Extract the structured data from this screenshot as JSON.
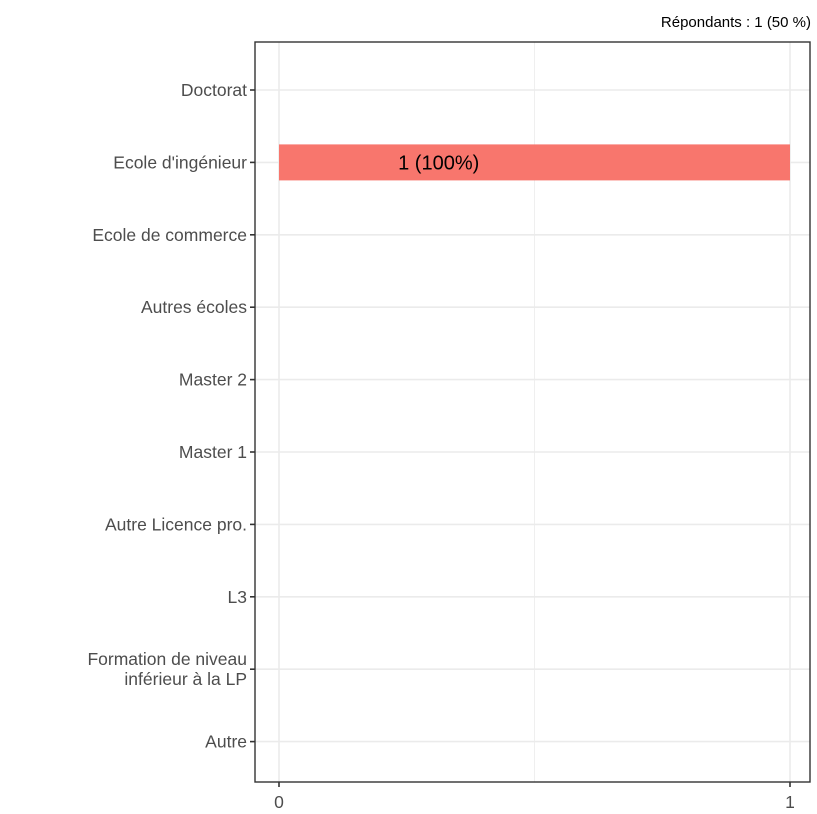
{
  "chart_data": {
    "type": "bar",
    "orientation": "horizontal",
    "subtitle": "Répondants : 1 (50 %)",
    "categories": [
      "Doctorat",
      "Ecole d'ingénieur",
      "Ecole de commerce",
      "Autres écoles",
      "Master 2",
      "Master 1",
      "Autre Licence pro.",
      "L3",
      "Formation de niveau inférieur à la LP",
      "Autre"
    ],
    "category_label_lines": [
      [
        "Doctorat"
      ],
      [
        "Ecole d'ingénieur"
      ],
      [
        "Ecole de commerce"
      ],
      [
        "Autres écoles"
      ],
      [
        "Master 2"
      ],
      [
        "Master 1"
      ],
      [
        "Autre Licence pro."
      ],
      [
        "L3"
      ],
      [
        "Formation de niveau",
        "inférieur à la LP"
      ],
      [
        "Autre"
      ]
    ],
    "values": [
      0,
      1,
      0,
      0,
      0,
      0,
      0,
      0,
      0,
      0
    ],
    "data_labels": [
      "",
      "1 (100%)",
      "",
      "",
      "",
      "",
      "",
      "",
      "",
      ""
    ],
    "xlim": [
      0,
      1
    ],
    "xticks": [
      0,
      1
    ],
    "xtick_labels": [
      "0",
      "1"
    ],
    "xlabel": "",
    "ylabel": "",
    "grid": true,
    "bar_color": "#f8766d",
    "grid_color": "#ebebeb",
    "axis_color": "#333333"
  }
}
